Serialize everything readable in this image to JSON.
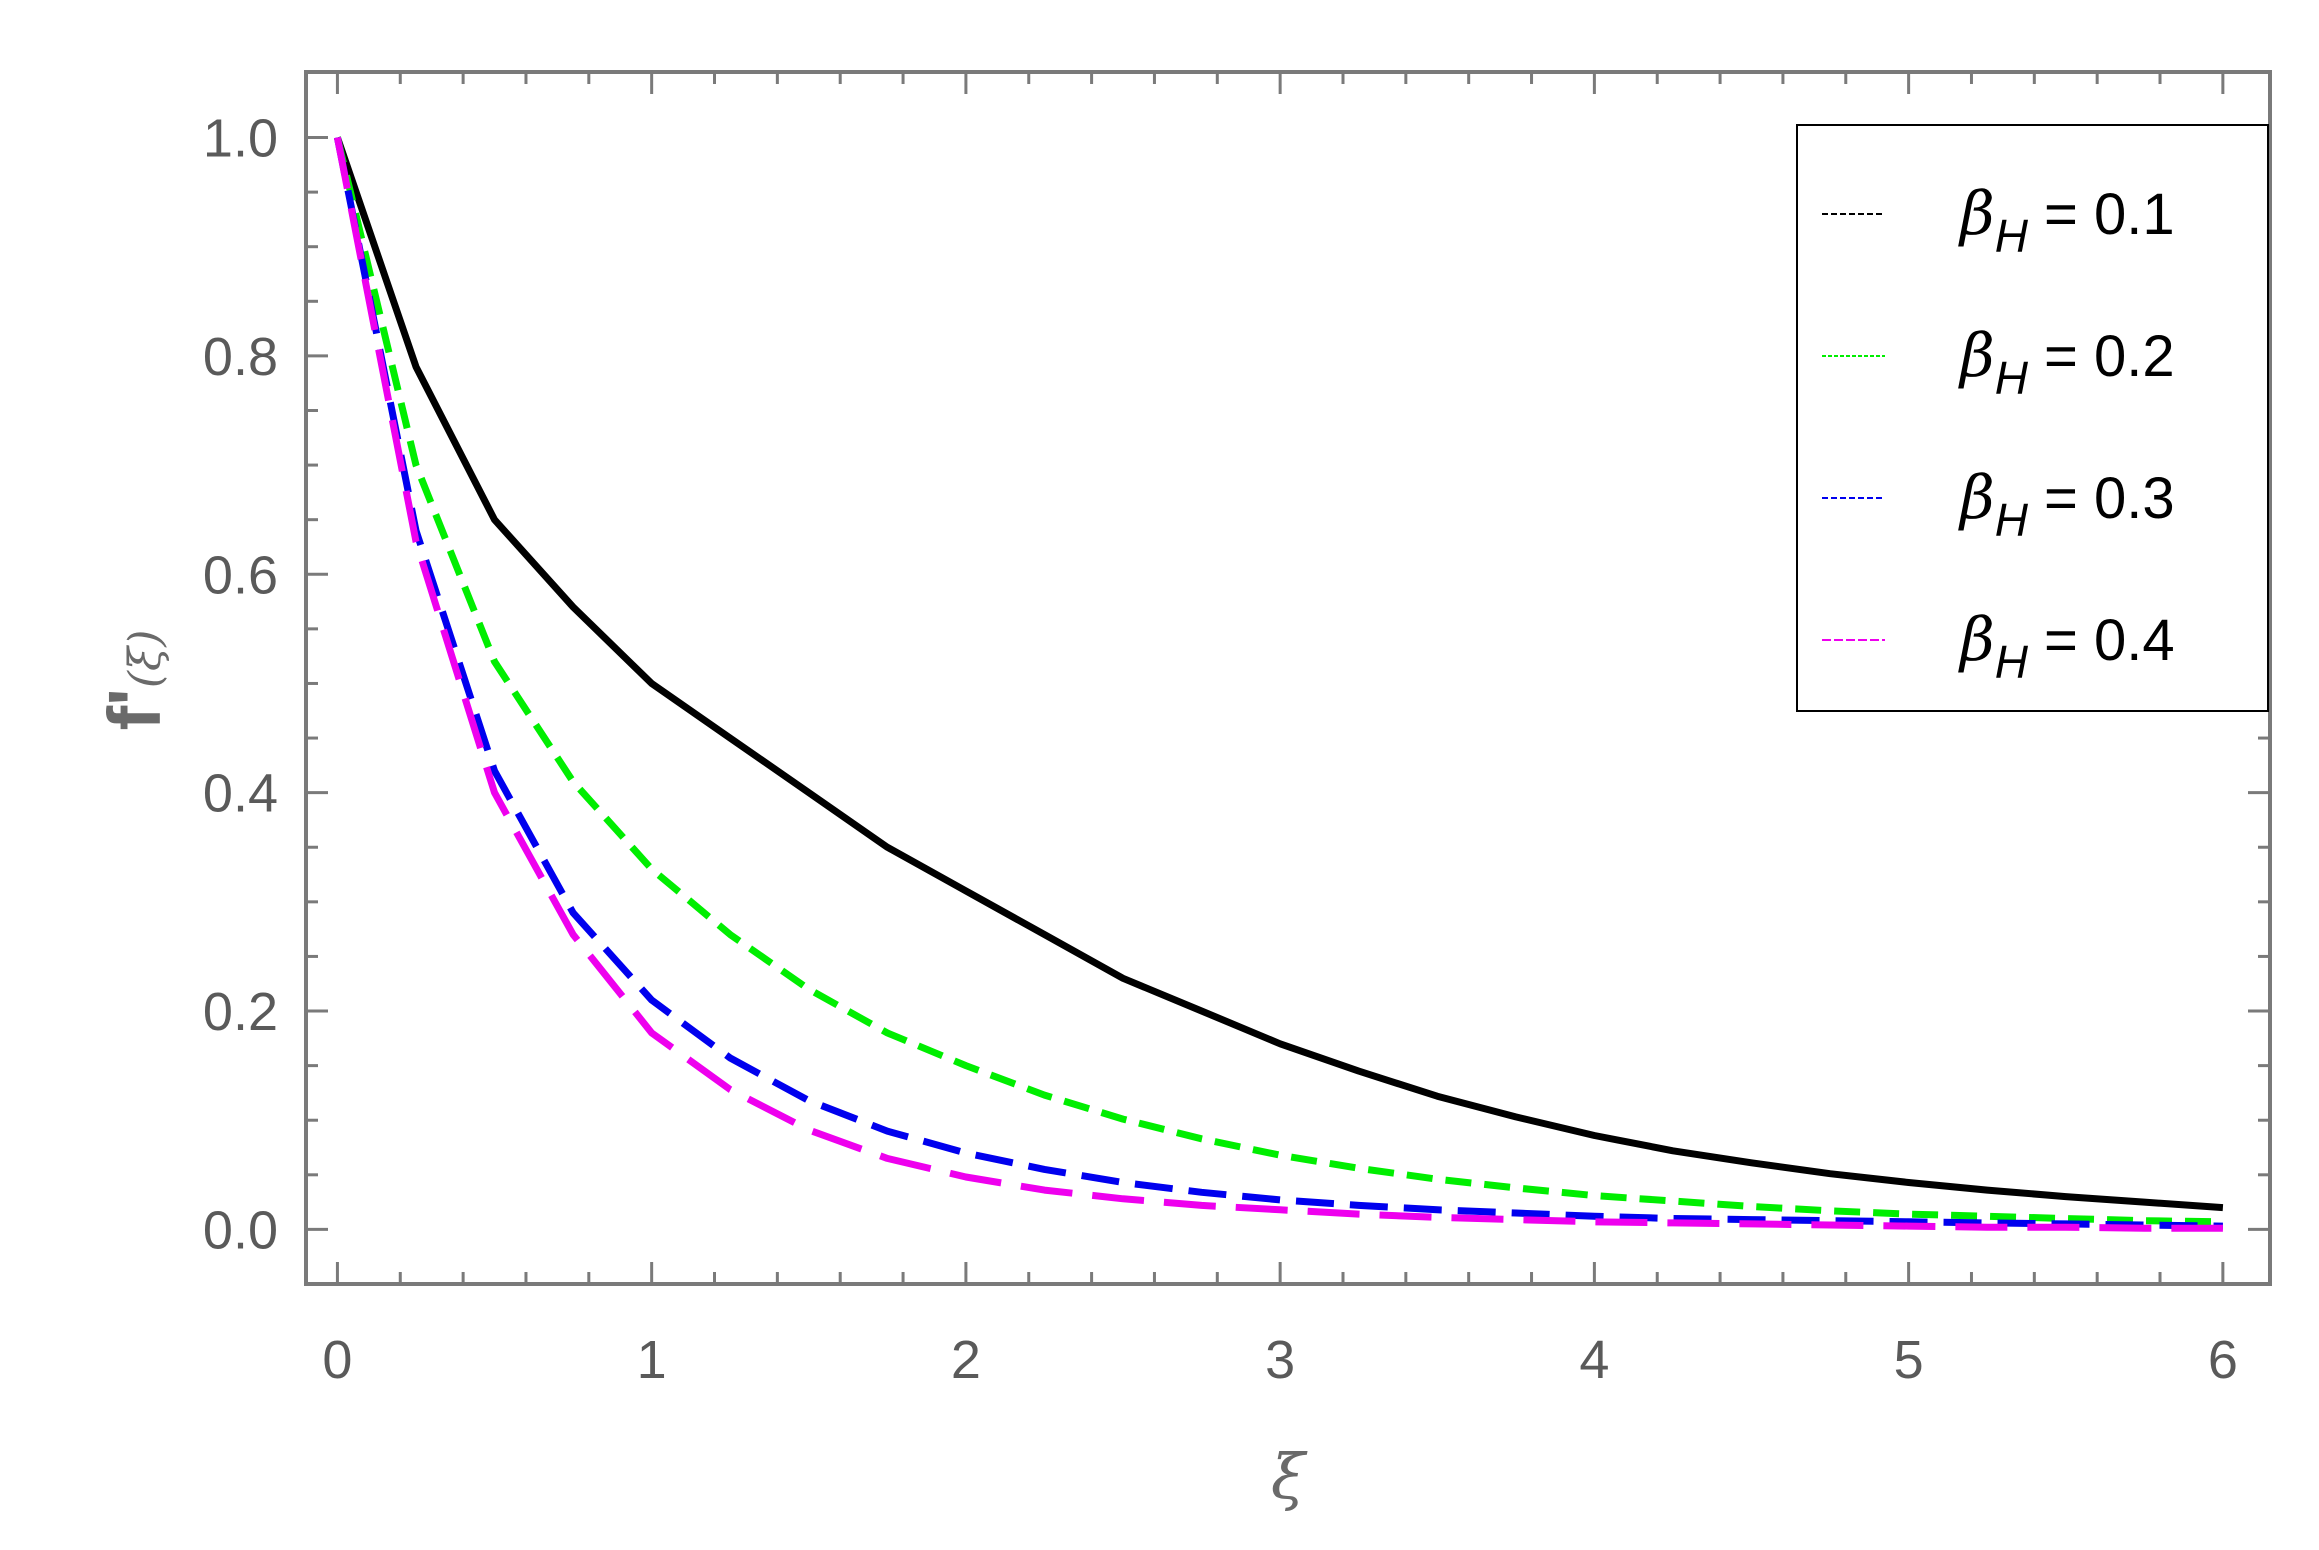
{
  "chart_data": {
    "type": "line",
    "xlabel": "ξ",
    "ylabel": {
      "main": "f'",
      "open": "(",
      "arg": "ξ",
      "close": ")"
    },
    "xlim": [
      -0.1,
      6.15
    ],
    "ylim": [
      -0.05,
      1.06
    ],
    "xticks": [
      0,
      1,
      2,
      3,
      4,
      5,
      6
    ],
    "xtick_labels": [
      "0",
      "1",
      "2",
      "3",
      "4",
      "5",
      "6"
    ],
    "yticks": [
      0.0,
      0.2,
      0.4,
      0.6,
      0.8,
      1.0
    ],
    "ytick_labels": [
      "0.0",
      "0.2",
      "0.4",
      "0.6",
      "0.8",
      "1.0"
    ],
    "grid": false,
    "legend_position": "top-right",
    "x": [
      0,
      0.25,
      0.5,
      0.75,
      1,
      1.25,
      1.5,
      1.75,
      2,
      2.25,
      2.5,
      2.75,
      3,
      3.25,
      3.5,
      3.75,
      4,
      4.25,
      4.5,
      4.75,
      5,
      5.25,
      5.5,
      5.75,
      6
    ],
    "series": [
      {
        "name": "βH = 0.1",
        "legend_greek": "β",
        "legend_sub": "H",
        "legend_value": " = 0.1",
        "color": "#000000",
        "dash": "solid",
        "values": [
          1.0,
          0.79,
          0.65,
          0.57,
          0.5,
          0.45,
          0.4,
          0.35,
          0.31,
          0.27,
          0.23,
          0.2,
          0.17,
          0.145,
          0.122,
          0.103,
          0.086,
          0.072,
          0.061,
          0.051,
          0.043,
          0.036,
          0.03,
          0.025,
          0.02
        ]
      },
      {
        "name": "βH = 0.2",
        "legend_greek": "β",
        "legend_sub": "H",
        "legend_value": " = 0.2",
        "color": "#00ee00",
        "dash": "short",
        "values": [
          1.0,
          0.7,
          0.52,
          0.41,
          0.33,
          0.27,
          0.22,
          0.18,
          0.15,
          0.123,
          0.101,
          0.083,
          0.068,
          0.056,
          0.046,
          0.038,
          0.031,
          0.026,
          0.021,
          0.017,
          0.014,
          0.012,
          0.01,
          0.008,
          0.007
        ]
      },
      {
        "name": "βH = 0.3",
        "legend_greek": "β",
        "legend_sub": "H",
        "legend_value": " = 0.3",
        "color": "#0000ee",
        "dash": "medium",
        "values": [
          1.0,
          0.64,
          0.42,
          0.29,
          0.21,
          0.157,
          0.118,
          0.09,
          0.07,
          0.055,
          0.043,
          0.034,
          0.027,
          0.022,
          0.018,
          0.015,
          0.012,
          0.01,
          0.009,
          0.008,
          0.007,
          0.006,
          0.005,
          0.004,
          0.003
        ]
      },
      {
        "name": "βH = 0.4",
        "legend_greek": "β",
        "legend_sub": "H",
        "legend_value": " = 0.4",
        "color": "#ee00ee",
        "dash": "long",
        "values": [
          1.0,
          0.63,
          0.4,
          0.27,
          0.18,
          0.128,
          0.091,
          0.065,
          0.048,
          0.036,
          0.028,
          0.022,
          0.018,
          0.014,
          0.011,
          0.009,
          0.007,
          0.006,
          0.005,
          0.004,
          0.003,
          0.002,
          0.002,
          0.001,
          0.001
        ]
      }
    ]
  }
}
